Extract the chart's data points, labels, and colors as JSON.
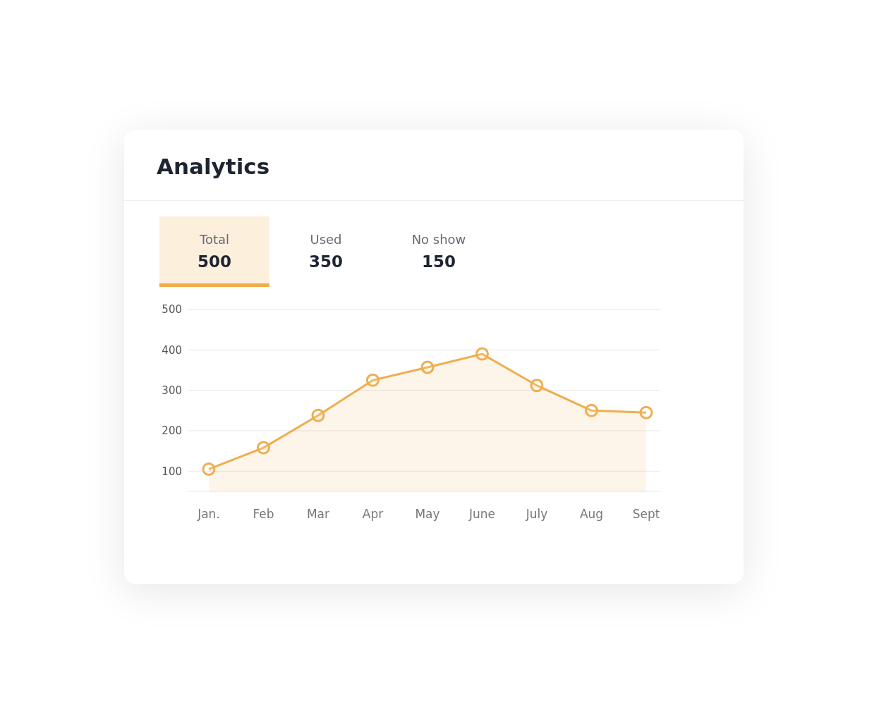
{
  "chart_data": {
    "type": "area",
    "title": "Analytics",
    "annotations": [
      "Total",
      "500",
      "Used",
      "350",
      "No show",
      "150"
    ],
    "categories": [
      "Jan.",
      "Feb",
      "Mar",
      "Apr",
      "May",
      "June",
      "July",
      "Aug",
      "Sept"
    ],
    "values": [
      105,
      158,
      238,
      325,
      357,
      390,
      312,
      250,
      245
    ],
    "color": "#f0ad4e",
    "ylim": [
      50,
      500
    ],
    "yticks": [
      100,
      200,
      300,
      400,
      500
    ],
    "grid": "y",
    "marker": "circle"
  }
}
